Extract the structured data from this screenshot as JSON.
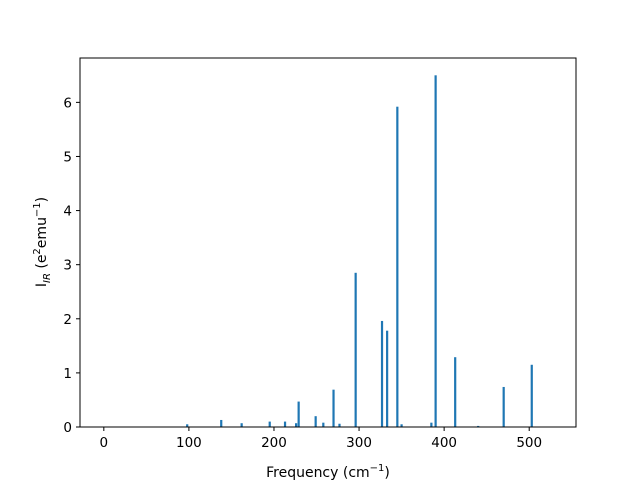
{
  "chart_data": {
    "type": "bar",
    "title": "",
    "xlabel": "Frequency (cm",
    "xlabel_sup": "−1",
    "xlabel_end": ")",
    "ylabel_main": "I",
    "ylabel_sub": "IR",
    "ylabel_rest": " (e",
    "ylabel_sup1": "2",
    "ylabel_mid": "emu",
    "ylabel_sup2": "−1",
    "ylabel_end": ")",
    "xlim": [
      -28,
      555
    ],
    "ylim": [
      0,
      6.82
    ],
    "xticks": [
      0,
      100,
      200,
      300,
      400,
      500
    ],
    "xtick_labels": [
      "0",
      "100",
      "200",
      "300",
      "400",
      "500"
    ],
    "yticks": [
      0,
      1,
      2,
      3,
      4,
      5,
      6
    ],
    "ytick_labels": [
      "0",
      "1",
      "2",
      "3",
      "4",
      "5",
      "6"
    ],
    "bar_color": "#1f77b4",
    "grid": false,
    "x": [
      98,
      138,
      162,
      195,
      213,
      226,
      229,
      249,
      258,
      270,
      277,
      296,
      327,
      333,
      345,
      350,
      385,
      390,
      413,
      440,
      470,
      503
    ],
    "values": [
      0.05,
      0.13,
      0.07,
      0.1,
      0.1,
      0.07,
      0.47,
      0.2,
      0.08,
      0.69,
      0.06,
      2.85,
      1.96,
      1.78,
      5.92,
      0.05,
      0.08,
      6.5,
      1.29,
      0.02,
      0.74,
      1.15
    ]
  }
}
